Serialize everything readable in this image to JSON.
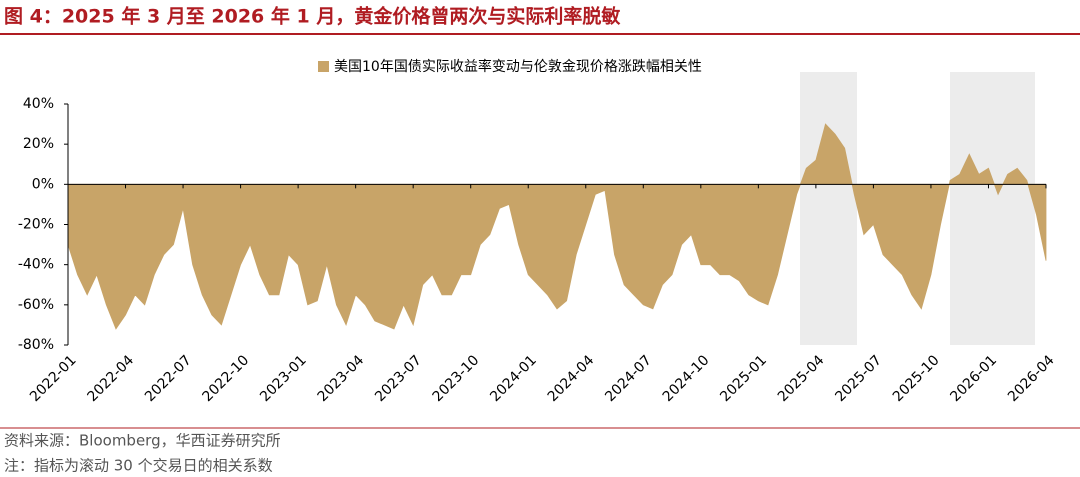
{
  "header": {
    "title": "图 4：2025 年 3 月至 2026 年 1 月，黄金价格曾两次与实际利率脱敏"
  },
  "chart_data": {
    "type": "area",
    "categories": [
      "2022-01",
      null,
      null,
      null,
      null,
      null,
      "2022-04",
      null,
      null,
      null,
      null,
      null,
      "2022-07",
      null,
      null,
      null,
      null,
      null,
      "2022-10",
      null,
      null,
      null,
      null,
      null,
      "2023-01",
      null,
      null,
      null,
      null,
      null,
      "2023-04",
      null,
      null,
      null,
      null,
      null,
      "2023-07",
      null,
      null,
      null,
      null,
      null,
      "2023-10",
      null,
      null,
      null,
      null,
      null,
      "2024-01",
      null,
      null,
      null,
      null,
      null,
      "2024-04",
      null,
      null,
      null,
      null,
      null,
      "2024-07",
      null,
      null,
      null,
      null,
      null,
      "2024-10",
      null,
      null,
      null,
      null,
      null,
      "2025-01",
      null,
      null,
      null,
      null,
      null,
      "2025-04",
      null,
      null,
      null,
      null,
      null,
      "2025-07",
      null,
      null,
      null,
      null,
      null,
      "2025-10",
      null,
      null,
      null,
      null,
      null,
      "2026-01",
      null,
      null,
      null,
      null,
      null,
      "2026-04"
    ],
    "series": [
      {
        "name": "美国10年国债实际收益率变动与伦敦金现价格涨跌幅相关性",
        "color": "#c8a468",
        "values": [
          -30,
          -45,
          -55,
          -45,
          -60,
          -72,
          -65,
          -55,
          -60,
          -45,
          -35,
          -30,
          -12,
          -40,
          -55,
          -65,
          -70,
          -55,
          -40,
          -30,
          -45,
          -55,
          -55,
          -35,
          -40,
          -60,
          -58,
          -40,
          -60,
          -70,
          -55,
          -60,
          -68,
          -70,
          -72,
          -60,
          -70,
          -50,
          -45,
          -55,
          -55,
          -45,
          -45,
          -30,
          -25,
          -12,
          -10,
          -30,
          -45,
          -50,
          -55,
          -62,
          -58,
          -35,
          -20,
          -5,
          -3,
          -35,
          -50,
          -55,
          -60,
          -62,
          -50,
          -45,
          -30,
          -25,
          -40,
          -40,
          -45,
          -45,
          -48,
          -55,
          -58,
          -60,
          -45,
          -25,
          -5,
          8,
          12,
          30,
          25,
          18,
          -5,
          -25,
          -20,
          -35,
          -40,
          -45,
          -55,
          -62,
          -45,
          -20,
          2,
          5,
          15,
          5,
          8,
          -5,
          5,
          8,
          2,
          -15,
          -38
        ]
      }
    ],
    "ylim": [
      -80,
      40
    ],
    "yticks": [
      {
        "value": -80,
        "label": "-80%"
      },
      {
        "value": -60,
        "label": "-60%"
      },
      {
        "value": -40,
        "label": "-40%"
      },
      {
        "value": -20,
        "label": "-20%"
      },
      {
        "value": 0,
        "label": "0%"
      },
      {
        "value": 20,
        "label": "20%"
      },
      {
        "value": 40,
        "label": "40%"
      }
    ],
    "legend": "top"
  },
  "footer": {
    "source": "资料来源：Bloomberg，华西证券研究所",
    "note": "注：指标为滚动 30 个交易日的相关系数"
  }
}
